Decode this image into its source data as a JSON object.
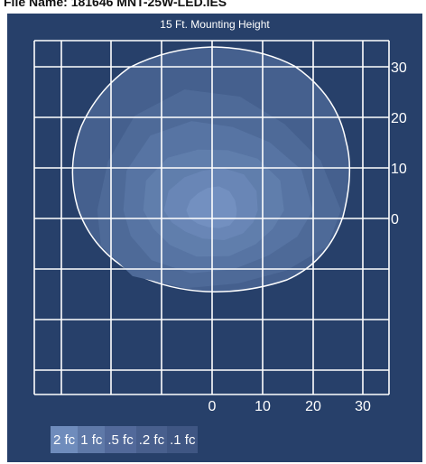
{
  "header": {
    "text": "File Name: 181646 MNT-25W-LED.IES"
  },
  "plot": {
    "title": "15 Ft. Mounting Height",
    "right_ticks": [
      "30",
      "20",
      "10",
      "0"
    ],
    "bottom_ticks": [
      "0",
      "10",
      "20",
      "30"
    ],
    "colors": {
      "background": "#27406a",
      "grid": "#ffffff",
      "levels": [
        "#45608e",
        "#4e6a98",
        "#5774a3",
        "#607eac",
        "#6986b6",
        "#7390c0"
      ]
    }
  },
  "legend": {
    "items": [
      {
        "label": "2 fc",
        "color": "#6f8cbc"
      },
      {
        "label": "1 fc",
        "color": "#5f79a8"
      },
      {
        "label": ".5 fc",
        "color": "#52699a"
      },
      {
        "label": ".2 fc",
        "color": "#485f8d"
      },
      {
        "label": ".1 fc",
        "color": "#3f5683"
      }
    ]
  }
}
